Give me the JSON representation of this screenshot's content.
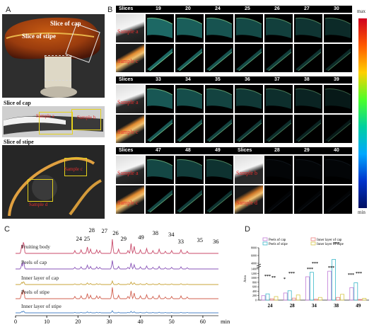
{
  "figure": {
    "panel_a": {
      "letter": "A",
      "cap_slice_label": "Slice of cap",
      "stipe_slice_label": "Slice of stipe",
      "sub1_title": "Slice of cap",
      "sub2_title": "Slice of stipe",
      "sample_a": "Sample a",
      "sample_b": "Sample b",
      "sample_c": "Sample c",
      "sample_d": "Sample d"
    },
    "panel_b": {
      "letter": "B",
      "header_slices": "Slices",
      "block1_headers": [
        "19",
        "20",
        "24",
        "25",
        "26",
        "27",
        "30"
      ],
      "block2_headers": [
        "33",
        "34",
        "35",
        "36",
        "37",
        "38",
        "39"
      ],
      "block3_headers": [
        "47",
        "48",
        "49",
        "Slices",
        "28",
        "29",
        "40"
      ],
      "sample_a": "Sample a",
      "sample_c": "Sample c",
      "sample_b": "Sample b",
      "sample_d": "Sample d",
      "colorbar_max": "max",
      "colorbar_min": "min"
    },
    "panel_c": {
      "letter": "C",
      "traces": [
        "Fruiting body",
        "Peels of cap",
        "Inner layer of cap",
        "Peels of stipe",
        "Inner layer of stipe"
      ],
      "trace_colors": [
        "#c84a6a",
        "#8a55b8",
        "#c9a43a",
        "#d1604f",
        "#4c86c8"
      ],
      "peak_labels": [
        "28",
        "27",
        "26",
        "24",
        "25",
        "29",
        "49",
        "38",
        "34",
        "33",
        "35",
        "36"
      ],
      "x_ticks": [
        "0",
        "10",
        "20",
        "30",
        "40",
        "50",
        "60"
      ],
      "x_unit": "min"
    },
    "panel_d": {
      "letter": "D"
    }
  },
  "chart_data": {
    "type": "bar",
    "title": "",
    "xlabel": "",
    "ylabel": "Area",
    "categories": [
      "24",
      "28",
      "34",
      "38",
      "49"
    ],
    "y_ticks_lower": [
      "0",
      "200",
      "400",
      "600",
      "800",
      "1000",
      "1200",
      "1400"
    ],
    "y_ticks_upper": [
      "4000",
      "6000",
      "8000"
    ],
    "legend": [
      {
        "name": "Peels of cap",
        "color": "#c07ad6"
      },
      {
        "name": "Peels of stipe",
        "color": "#3ab7c9"
      },
      {
        "name": "Inner layer of cap",
        "color": "#e87d7d"
      },
      {
        "name": "Inner layer of stipe",
        "color": "#d6c74a"
      }
    ],
    "series": [
      {
        "name": "Peels of cap",
        "values": [
          200,
          320,
          1050,
          1300,
          560
        ]
      },
      {
        "name": "Peels of stipe",
        "values": [
          280,
          420,
          1250,
          5000,
          780
        ]
      },
      {
        "name": "Inner layer of cap",
        "values": [
          60,
          90,
          40,
          120,
          30
        ]
      },
      {
        "name": "Inner layer of stipe",
        "values": [
          160,
          230,
          120,
          260,
          80
        ]
      }
    ],
    "significance": [
      "***",
      "**",
      "*",
      "***",
      "***",
      "***",
      "***",
      "***",
      "***",
      "***"
    ]
  }
}
